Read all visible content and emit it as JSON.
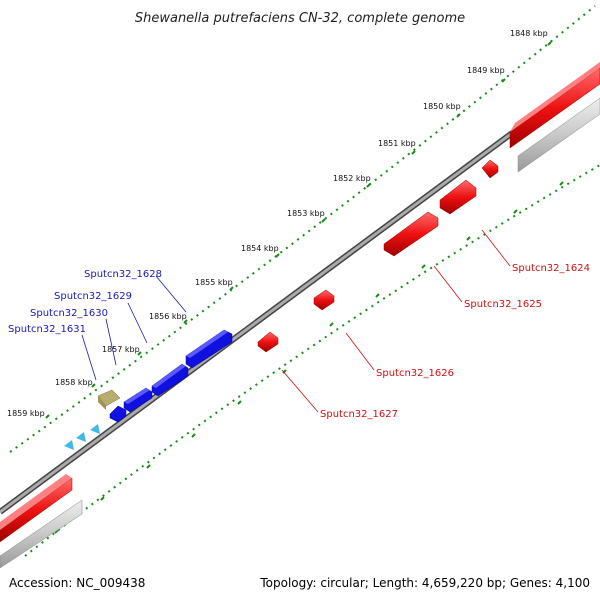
{
  "title": "Shewanella putrefaciens CN-32, complete genome",
  "footer": {
    "accession": "Accession: NC_009438",
    "summary": "Topology: circular; Length: 4,659,220 bp; Genes: 4,100"
  },
  "ticks": [
    "1848 kbp",
    "1849 kbp",
    "1850 kbp",
    "1851 kbp",
    "1852 kbp",
    "1853 kbp",
    "1854 kbp",
    "1855 kbp",
    "1856 kbp",
    "1857 kbp",
    "1858 kbp",
    "1859 kbp"
  ],
  "genes_forward": [
    "Sputcn32_1628",
    "Sputcn32_1629",
    "Sputcn32_1630",
    "Sputcn32_1631"
  ],
  "genes_reverse": [
    "Sputcn32_1624",
    "Sputcn32_1625",
    "Sputcn32_1626",
    "Sputcn32_1627"
  ],
  "colors": {
    "forward": "#1010e0",
    "reverse": "#ee1111",
    "tick": "#1a8a1a",
    "backbone": "#777777",
    "rna": "#40b8e8",
    "other": "#b8ad70"
  }
}
